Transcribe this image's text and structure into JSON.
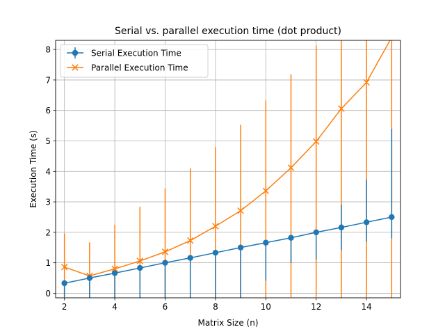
{
  "chart_data": {
    "type": "line",
    "title": "Serial vs. parallel execution time (dot product)",
    "xlabel": "Matrix Size (n)",
    "ylabel": "Execution Time (s)",
    "xlim": [
      1.65,
      15.35
    ],
    "ylim": [
      -0.15,
      8.3
    ],
    "xticks": [
      2,
      4,
      6,
      8,
      10,
      12,
      14
    ],
    "yticks": [
      0,
      1,
      2,
      3,
      4,
      5,
      6,
      7,
      8
    ],
    "grid": true,
    "legend_position": "top-left",
    "x": [
      2,
      3,
      4,
      5,
      6,
      7,
      8,
      9,
      10,
      11,
      12,
      13,
      14,
      15
    ],
    "series": [
      {
        "name": "Serial Execution Time",
        "color": "#1f77b4",
        "marker": "circle",
        "values": [
          0.33,
          0.5,
          0.66,
          0.83,
          1.0,
          1.16,
          1.33,
          1.5,
          1.66,
          1.82,
          2.0,
          2.16,
          2.33,
          2.5
        ],
        "err_low": [
          0.45,
          0.65,
          0.82,
          1.0,
          1.16,
          1.32,
          1.5,
          1.66,
          1.25,
          0.82,
          0.9,
          0.75,
          0.63,
          0.7
        ],
        "err_high": [
          0.0,
          0.0,
          0.0,
          0.0,
          0.0,
          0.0,
          0.0,
          0.0,
          0.0,
          0.0,
          0.0,
          0.75,
          1.4,
          2.9
        ]
      },
      {
        "name": "Parallel Execution Time",
        "color": "#ff7f0e",
        "marker": "x",
        "values": [
          0.86,
          0.57,
          0.8,
          1.06,
          1.36,
          1.73,
          2.2,
          2.71,
          3.36,
          4.12,
          4.98,
          6.06,
          6.92,
          8.4
        ],
        "err_low": [
          1.0,
          0.7,
          0.95,
          1.2,
          1.5,
          1.9,
          2.35,
          2.85,
          3.5,
          4.25,
          5.1,
          6.2,
          7.05,
          8.55
        ],
        "err_high": [
          1.1,
          1.1,
          1.45,
          1.78,
          2.08,
          2.37,
          2.6,
          2.82,
          2.97,
          3.07,
          3.15,
          2.3,
          1.45,
          0.0
        ]
      }
    ]
  }
}
